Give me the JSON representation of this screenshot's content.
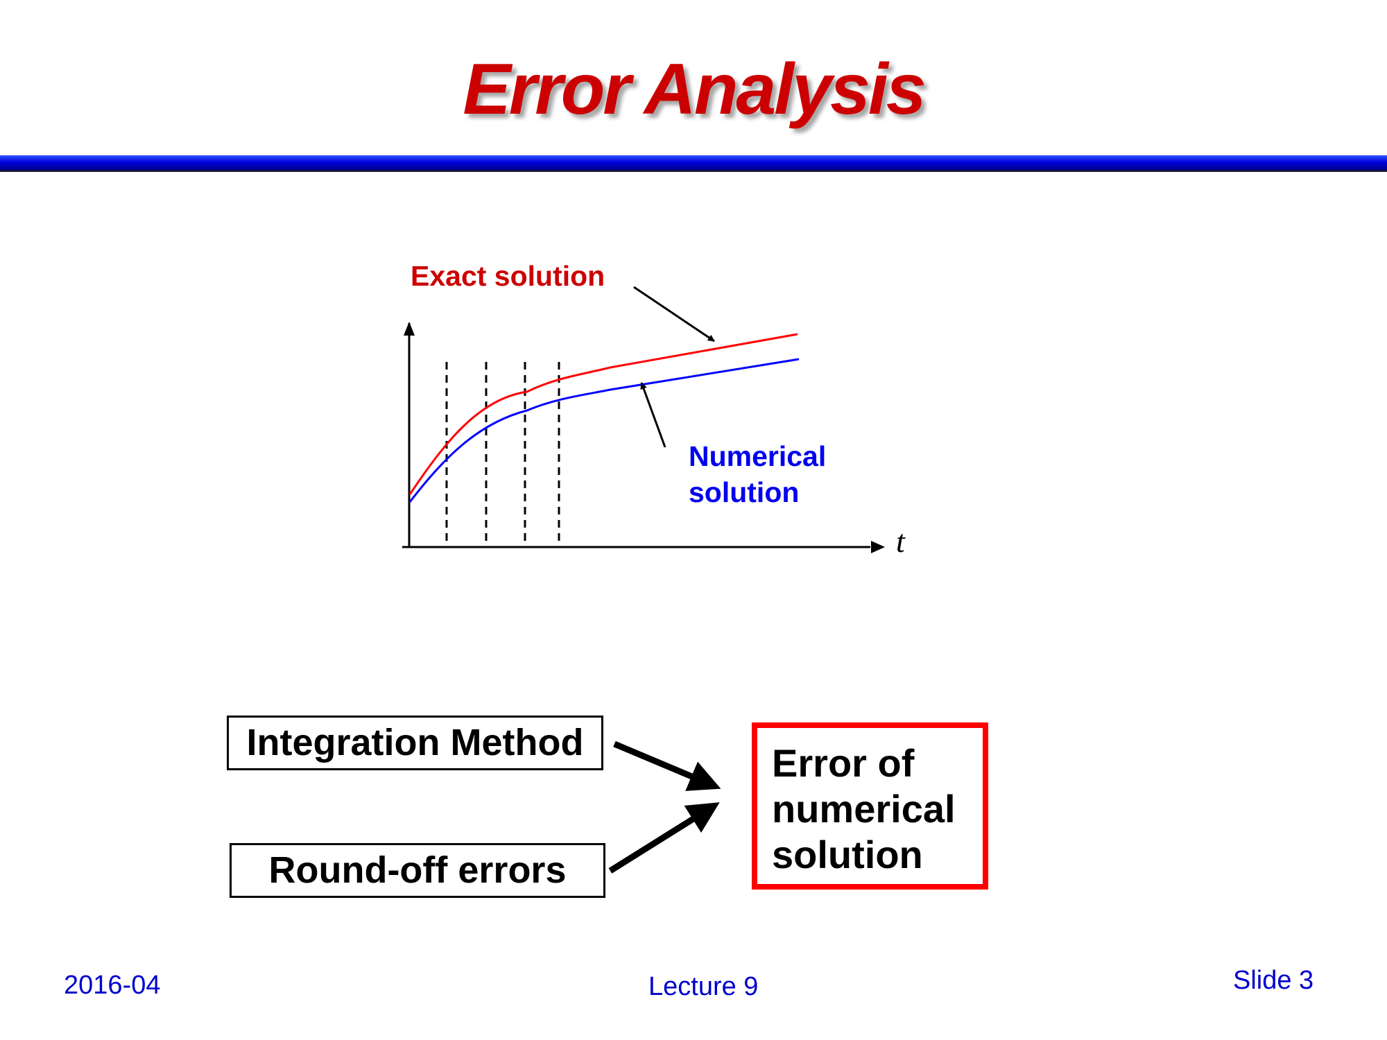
{
  "title": "Error Analysis",
  "diagram": {
    "exact_label": "Exact solution",
    "numerical_label_line1": "Numerical",
    "numerical_label_line2": "solution",
    "x_axis_label": "t",
    "colors": {
      "exact": "#ff0000",
      "numerical": "#0000ff",
      "title": "#cc0000",
      "error_box_border": "#ff0000"
    }
  },
  "causes": {
    "integration_method": "Integration Method",
    "round_off": "Round-off errors"
  },
  "result": {
    "line1": "Error of",
    "line2": "numerical",
    "line3": "solution"
  },
  "footer": {
    "date": "2016-04",
    "lecture": "Lecture 9",
    "slide": "Slide 3"
  }
}
